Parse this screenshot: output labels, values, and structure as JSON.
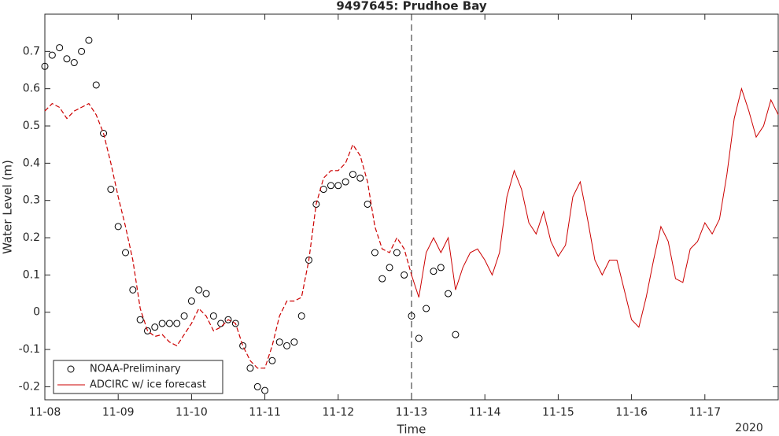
{
  "chart_data": {
    "type": "line",
    "title": "9497645: Prudhoe Bay",
    "xlabel": "Time",
    "ylabel": "Water Level (m)",
    "year_label": "2020",
    "xlim": [
      8,
      18
    ],
    "ylim": [
      -0.235,
      0.8
    ],
    "xticks": [
      {
        "value": 8,
        "label": "11-08"
      },
      {
        "value": 9,
        "label": "11-09"
      },
      {
        "value": 10,
        "label": "11-10"
      },
      {
        "value": 11,
        "label": "11-11"
      },
      {
        "value": 12,
        "label": "11-12"
      },
      {
        "value": 13,
        "label": "11-13"
      },
      {
        "value": 14,
        "label": "11-14"
      },
      {
        "value": 15,
        "label": "11-15"
      },
      {
        "value": 16,
        "label": "11-16"
      },
      {
        "value": 17,
        "label": "11-17"
      }
    ],
    "yticks": [
      -0.2,
      -0.1,
      0,
      0.1,
      0.2,
      0.3,
      0.4,
      0.5,
      0.6,
      0.7
    ],
    "forecast_start": 13,
    "legend": "lower left",
    "grid": false,
    "series": [
      {
        "name": "NOAA-Preliminary",
        "color": "#000000",
        "style": "marker",
        "x": [
          8.0,
          8.1,
          8.2,
          8.3,
          8.4,
          8.5,
          8.6,
          8.7,
          8.8,
          8.9,
          9.0,
          9.1,
          9.2,
          9.3,
          9.4,
          9.5,
          9.6,
          9.7,
          9.8,
          9.9,
          10.0,
          10.1,
          10.2,
          10.3,
          10.4,
          10.5,
          10.6,
          10.7,
          10.8,
          10.9,
          11.0,
          11.1,
          11.2,
          11.3,
          11.4,
          11.5,
          11.6,
          11.7,
          11.8,
          11.9,
          12.0,
          12.1,
          12.2,
          12.3,
          12.4,
          12.5,
          12.6,
          12.7,
          12.8,
          12.9,
          13.0,
          13.1,
          13.2,
          13.3,
          13.4,
          13.5,
          13.6
        ],
        "values": [
          0.66,
          0.69,
          0.71,
          0.68,
          0.67,
          0.7,
          0.73,
          0.61,
          0.48,
          0.33,
          0.23,
          0.16,
          0.06,
          -0.02,
          -0.05,
          -0.04,
          -0.03,
          -0.03,
          -0.03,
          -0.01,
          0.03,
          0.06,
          0.05,
          -0.01,
          -0.03,
          -0.02,
          -0.03,
          -0.09,
          -0.15,
          -0.2,
          -0.21,
          -0.13,
          -0.08,
          -0.09,
          -0.08,
          -0.01,
          0.14,
          0.29,
          0.33,
          0.34,
          0.34,
          0.35,
          0.37,
          0.36,
          0.29,
          0.16,
          0.09,
          0.12,
          0.16,
          0.1,
          -0.01,
          -0.07,
          0.01,
          0.11,
          0.12,
          0.05,
          -0.06
        ]
      },
      {
        "name": "ADCIRC w/ ice forecast",
        "color": "#cc0000",
        "style": "line",
        "x": [
          8.0,
          8.1,
          8.2,
          8.3,
          8.4,
          8.5,
          8.6,
          8.7,
          8.8,
          8.9,
          9.0,
          9.1,
          9.2,
          9.3,
          9.4,
          9.5,
          9.6,
          9.7,
          9.8,
          9.9,
          10.0,
          10.1,
          10.2,
          10.3,
          10.4,
          10.5,
          10.6,
          10.7,
          10.8,
          10.9,
          11.0,
          11.1,
          11.2,
          11.3,
          11.4,
          11.5,
          11.6,
          11.7,
          11.8,
          11.9,
          12.0,
          12.1,
          12.2,
          12.3,
          12.4,
          12.5,
          12.6,
          12.7,
          12.8,
          12.9,
          13.0,
          13.1,
          13.2,
          13.3,
          13.4,
          13.5,
          13.6,
          13.7,
          13.8,
          13.9,
          14.0,
          14.1,
          14.2,
          14.3,
          14.4,
          14.5,
          14.6,
          14.7,
          14.8,
          14.9,
          15.0,
          15.1,
          15.2,
          15.3,
          15.4,
          15.5,
          15.6,
          15.7,
          15.8,
          15.9,
          16.0,
          16.1,
          16.2,
          16.3,
          16.4,
          16.5,
          16.6,
          16.7,
          16.8,
          16.9,
          17.0,
          17.1,
          17.2,
          17.3,
          17.4,
          17.5,
          17.6,
          17.7,
          17.8,
          17.9,
          18.0
        ],
        "values": [
          0.54,
          0.56,
          0.55,
          0.52,
          0.54,
          0.55,
          0.56,
          0.53,
          0.48,
          0.4,
          0.31,
          0.23,
          0.14,
          0.01,
          -0.05,
          -0.065,
          -0.06,
          -0.08,
          -0.09,
          -0.06,
          -0.03,
          0.01,
          -0.01,
          -0.05,
          -0.04,
          -0.02,
          -0.03,
          -0.09,
          -0.13,
          -0.15,
          -0.15,
          -0.09,
          -0.01,
          0.03,
          0.03,
          0.04,
          0.14,
          0.29,
          0.36,
          0.38,
          0.38,
          0.4,
          0.45,
          0.42,
          0.35,
          0.23,
          0.17,
          0.16,
          0.2,
          0.17,
          0.1,
          0.04,
          0.16,
          0.2,
          0.16,
          0.2,
          0.06,
          0.12,
          0.16,
          0.17,
          0.14,
          0.1,
          0.16,
          0.31,
          0.38,
          0.33,
          0.24,
          0.21,
          0.27,
          0.19,
          0.15,
          0.18,
          0.31,
          0.35,
          0.25,
          0.14,
          0.1,
          0.14,
          0.14,
          0.06,
          -0.02,
          -0.04,
          0.04,
          0.14,
          0.23,
          0.19,
          0.09,
          0.08,
          0.17,
          0.19,
          0.24,
          0.21,
          0.25,
          0.37,
          0.52,
          0.6,
          0.54,
          0.47,
          0.5,
          0.57,
          0.53
        ]
      }
    ]
  }
}
